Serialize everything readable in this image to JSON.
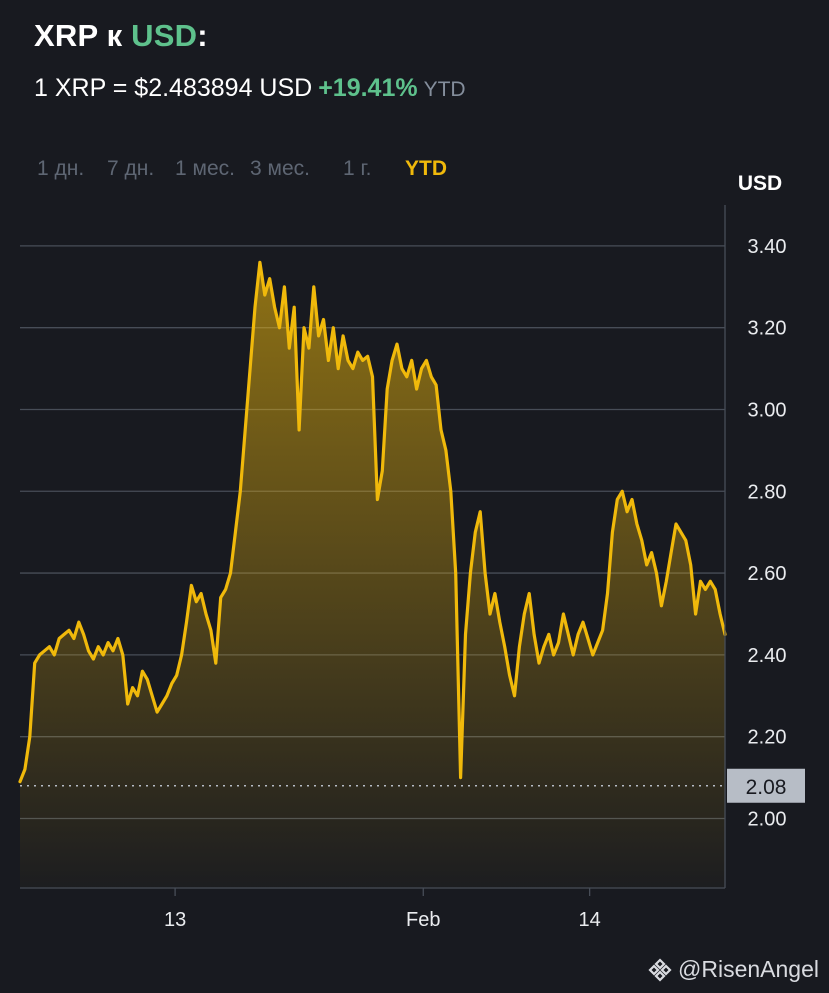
{
  "header": {
    "title_prefix": "XRP к ",
    "title_accent": "USD",
    "title_suffix": ":",
    "rate": "1 XRP = $2.483894 USD",
    "change": "+19.41%",
    "period": "YTD"
  },
  "range_tabs": [
    {
      "label": "1 дн.",
      "active": false
    },
    {
      "label": "7 дн.",
      "active": false
    },
    {
      "label": "1 мес.",
      "active": false
    },
    {
      "label": "3 мес.",
      "active": false
    },
    {
      "label": "1 г.",
      "active": false
    },
    {
      "label": "YTD",
      "active": true
    }
  ],
  "watermark": "@RisenAngel",
  "colors": {
    "line": "#f0b90b",
    "up": "#5ec18c",
    "grid": "#474d57",
    "background": "#181a20"
  },
  "chart_data": {
    "type": "area",
    "ylabel": "USD",
    "ylim": [
      1.83,
      3.5
    ],
    "yticks": [
      2.0,
      2.2,
      2.4,
      2.6,
      2.8,
      3.0,
      3.2,
      3.4
    ],
    "ytick_labels": [
      "2.00",
      "2.20",
      "2.40",
      "2.60",
      "2.80",
      "3.00",
      "3.20",
      "3.40"
    ],
    "xticks": [
      {
        "label": "13",
        "pos": 0.22
      },
      {
        "label": "Feb",
        "pos": 0.572
      },
      {
        "label": "14",
        "pos": 0.808
      }
    ],
    "reference_line": {
      "value": 2.08,
      "label": "2.08",
      "style": "dotted"
    },
    "series": [
      {
        "values": [
          2.09,
          2.12,
          2.2,
          2.38,
          2.4,
          2.41,
          2.42,
          2.4,
          2.44,
          2.45,
          2.46,
          2.44,
          2.48,
          2.45,
          2.41,
          2.39,
          2.42,
          2.4,
          2.43,
          2.41,
          2.44,
          2.4,
          2.28,
          2.32,
          2.3,
          2.36,
          2.34,
          2.3,
          2.26,
          2.28,
          2.3,
          2.33,
          2.35,
          2.4,
          2.48,
          2.57,
          2.53,
          2.55,
          2.5,
          2.46,
          2.38,
          2.54,
          2.56,
          2.6,
          2.7,
          2.8,
          2.95,
          3.1,
          3.25,
          3.36,
          3.28,
          3.32,
          3.25,
          3.2,
          3.3,
          3.15,
          3.25,
          2.95,
          3.2,
          3.15,
          3.3,
          3.18,
          3.22,
          3.12,
          3.2,
          3.1,
          3.18,
          3.12,
          3.1,
          3.14,
          3.12,
          3.13,
          3.08,
          2.78,
          2.85,
          3.05,
          3.12,
          3.16,
          3.1,
          3.08,
          3.12,
          3.05,
          3.1,
          3.12,
          3.08,
          3.06,
          2.95,
          2.9,
          2.8,
          2.6,
          2.1,
          2.45,
          2.6,
          2.7,
          2.75,
          2.6,
          2.5,
          2.55,
          2.48,
          2.42,
          2.35,
          2.3,
          2.42,
          2.5,
          2.55,
          2.45,
          2.38,
          2.42,
          2.45,
          2.4,
          2.43,
          2.5,
          2.45,
          2.4,
          2.45,
          2.48,
          2.44,
          2.4,
          2.43,
          2.46,
          2.55,
          2.7,
          2.78,
          2.8,
          2.75,
          2.78,
          2.72,
          2.68,
          2.62,
          2.65,
          2.6,
          2.52,
          2.58,
          2.65,
          2.72,
          2.7,
          2.68,
          2.62,
          2.5,
          2.58,
          2.56,
          2.58,
          2.56,
          2.5,
          2.45
        ]
      }
    ]
  }
}
